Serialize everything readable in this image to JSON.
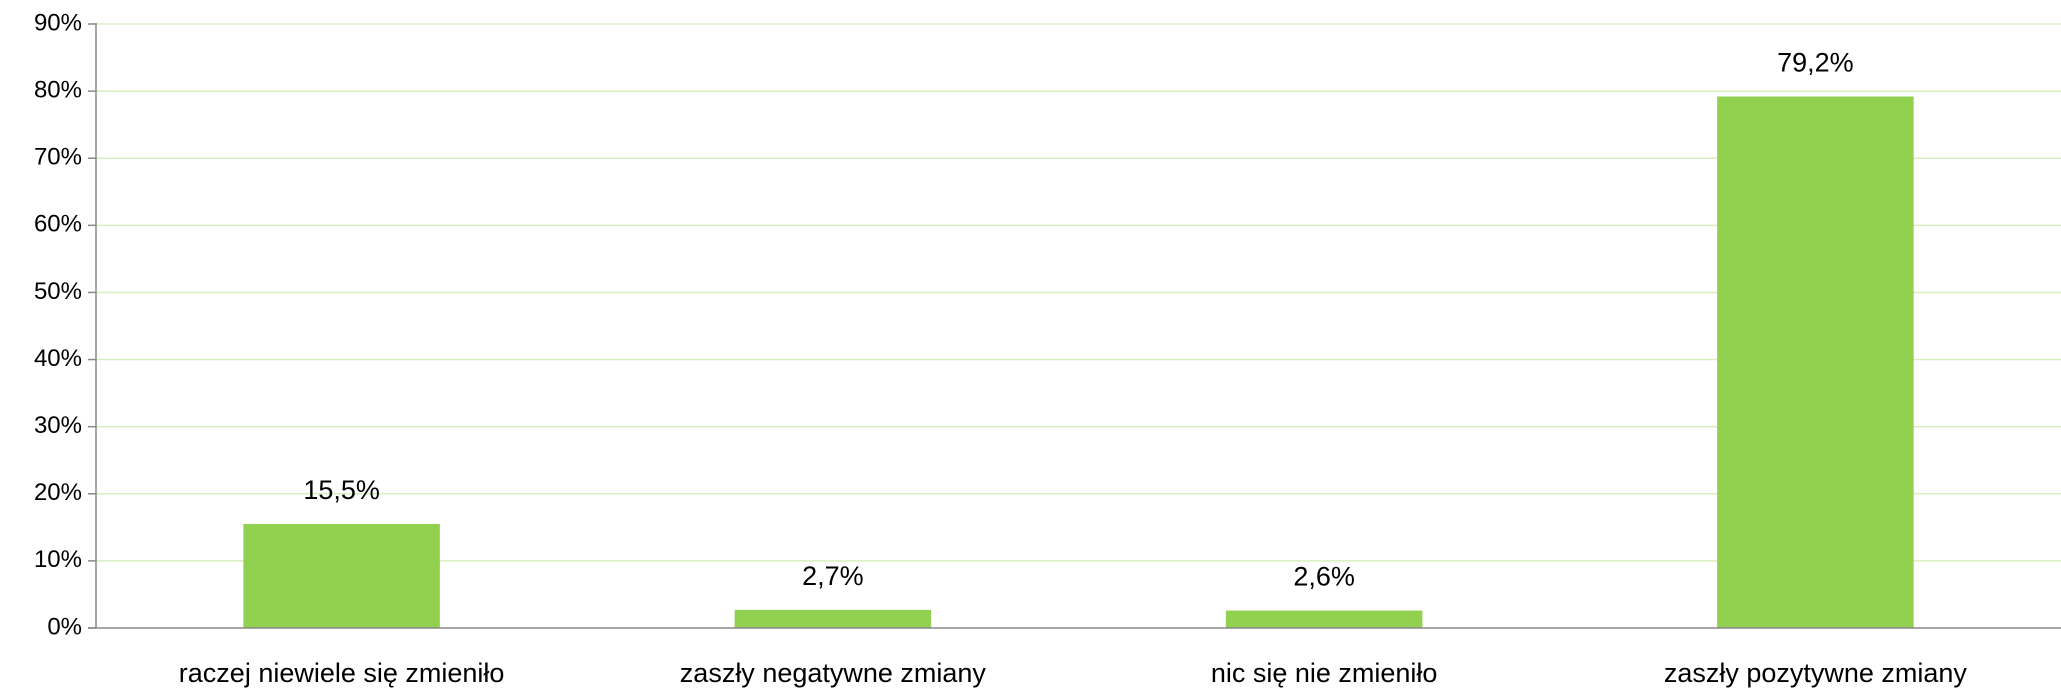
{
  "chart_data": {
    "type": "bar",
    "categories": [
      "raczej niewiele się zmieniło",
      "zaszły negatywne zmiany",
      "nic się nie zmieniło",
      "zaszły pozytywne zmiany"
    ],
    "values": [
      15.5,
      2.7,
      2.6,
      79.2
    ],
    "value_labels": [
      "15,5%",
      "2,7%",
      "2,6%",
      "79,2%"
    ],
    "color": "#92d050",
    "ylim": [
      0,
      90
    ],
    "yticks": [
      {
        "value": 0,
        "label": "0%"
      },
      {
        "value": 10,
        "label": "10%"
      },
      {
        "value": 20,
        "label": "20%"
      },
      {
        "value": 30,
        "label": "30%"
      },
      {
        "value": 40,
        "label": "40%"
      },
      {
        "value": 50,
        "label": "50%"
      },
      {
        "value": 60,
        "label": "60%"
      },
      {
        "value": 70,
        "label": "70%"
      },
      {
        "value": 80,
        "label": "80%"
      },
      {
        "value": 90,
        "label": "90%"
      }
    ],
    "grid": true
  }
}
